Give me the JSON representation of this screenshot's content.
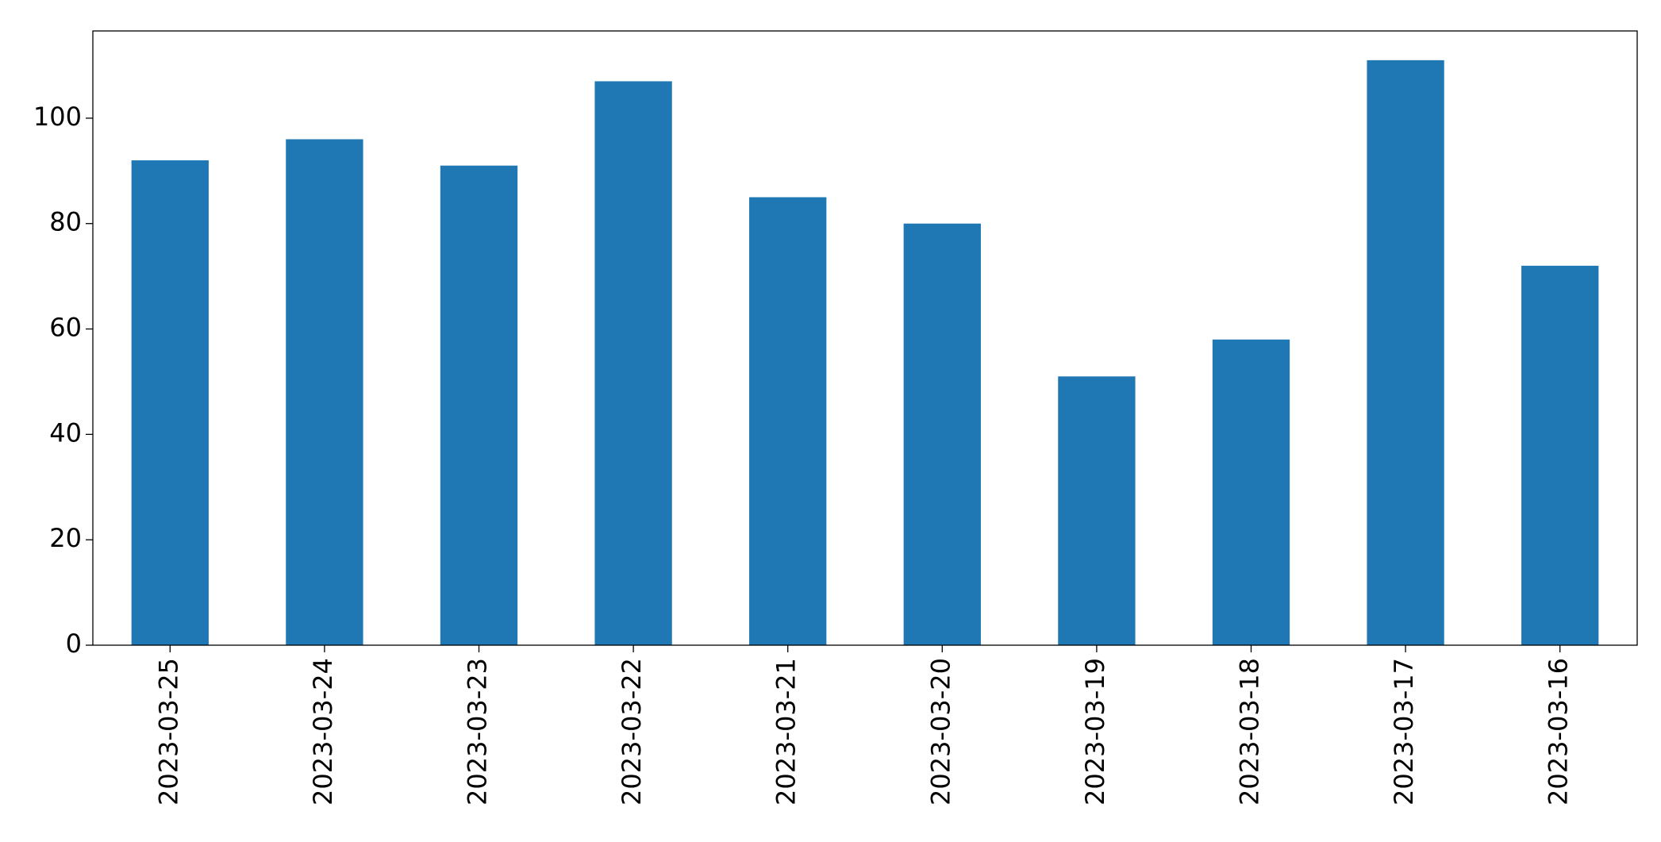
{
  "chart_data": {
    "type": "bar",
    "categories": [
      "2023-03-25",
      "2023-03-24",
      "2023-03-23",
      "2023-03-22",
      "2023-03-21",
      "2023-03-20",
      "2023-03-19",
      "2023-03-18",
      "2023-03-17",
      "2023-03-16"
    ],
    "values": [
      92,
      96,
      91,
      107,
      85,
      80,
      51,
      58,
      111,
      72
    ],
    "color": "#1f77b4",
    "ylim": [
      0,
      116.55
    ],
    "yticks": [
      0,
      20,
      40,
      60,
      80,
      100
    ],
    "grid": false
  }
}
